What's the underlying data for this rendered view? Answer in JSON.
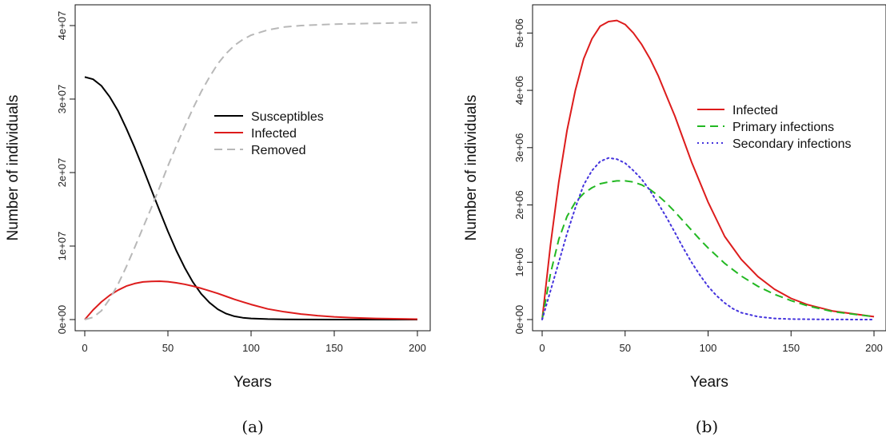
{
  "chart_data": [
    {
      "type": "line",
      "caption": "(a)",
      "xlabel": "Years",
      "ylabel": "Number of individuals",
      "xlim": [
        0,
        200
      ],
      "ylim": [
        0,
        40000000
      ],
      "x_ticks": [
        0,
        50,
        100,
        150,
        200
      ],
      "x_tick_labels": [
        "0",
        "50",
        "100",
        "150",
        "200"
      ],
      "y_ticks": [
        0,
        10000000,
        20000000,
        30000000,
        40000000
      ],
      "y_tick_labels": [
        "0e+00",
        "1e+07",
        "2e+07",
        "3e+07",
        "4e+07"
      ],
      "grid": false,
      "legend_position": "center-right",
      "series": [
        {
          "name": "Susceptibles",
          "color": "#000000",
          "style": "solid",
          "x": [
            0,
            5,
            10,
            15,
            20,
            25,
            30,
            35,
            40,
            45,
            50,
            55,
            60,
            65,
            70,
            75,
            80,
            85,
            90,
            95,
            100,
            110,
            120,
            130,
            150,
            175,
            200
          ],
          "y": [
            33000000,
            32700000,
            31800000,
            30300000,
            28400000,
            26000000,
            23400000,
            20600000,
            17700000,
            14800000,
            12000000,
            9400000,
            7100000,
            5100000,
            3500000,
            2300000,
            1400000,
            800000,
            450000,
            250000,
            150000,
            60000,
            30000,
            15000,
            5000,
            2000,
            1000
          ]
        },
        {
          "name": "Infected",
          "color": "#dd1c1c",
          "style": "solid",
          "x": [
            0,
            5,
            10,
            15,
            20,
            25,
            30,
            35,
            40,
            45,
            50,
            55,
            60,
            65,
            70,
            75,
            80,
            85,
            90,
            95,
            100,
            110,
            120,
            130,
            140,
            150,
            160,
            175,
            200
          ],
          "y": [
            0,
            1300000,
            2400000,
            3300000,
            4000000,
            4550000,
            4900000,
            5120000,
            5200000,
            5220000,
            5150000,
            5000000,
            4800000,
            4550000,
            4250000,
            3900000,
            3550000,
            3150000,
            2750000,
            2400000,
            2050000,
            1450000,
            1050000,
            750000,
            530000,
            370000,
            260000,
            150000,
            50000
          ]
        },
        {
          "name": "Removed",
          "color": "#b8b8b8",
          "style": "dashed",
          "x": [
            0,
            5,
            10,
            15,
            20,
            25,
            30,
            35,
            40,
            45,
            50,
            55,
            60,
            65,
            70,
            75,
            80,
            85,
            90,
            95,
            100,
            110,
            120,
            130,
            140,
            150,
            175,
            200
          ],
          "y": [
            0,
            300000,
            1200000,
            2800000,
            4800000,
            7200000,
            9800000,
            12500000,
            15200000,
            18000000,
            20900000,
            23600000,
            26200000,
            28700000,
            31000000,
            33000000,
            34800000,
            36200000,
            37300000,
            38100000,
            38700000,
            39400000,
            39800000,
            40000000,
            40100000,
            40200000,
            40300000,
            40400000
          ]
        }
      ]
    },
    {
      "type": "line",
      "caption": "(b)",
      "xlabel": "Years",
      "ylabel": "Number of individuals",
      "xlim": [
        0,
        200
      ],
      "ylim": [
        0,
        5200000
      ],
      "x_ticks": [
        0,
        50,
        100,
        150,
        200
      ],
      "x_tick_labels": [
        "0",
        "50",
        "100",
        "150",
        "200"
      ],
      "y_ticks": [
        0,
        1000000,
        2000000,
        3000000,
        4000000,
        5000000
      ],
      "y_tick_labels": [
        "0e+00",
        "1e+06",
        "2e+06",
        "3e+06",
        "4e+06",
        "5e+06"
      ],
      "grid": false,
      "legend_position": "center-right",
      "series": [
        {
          "name": "Infected",
          "color": "#dd1c1c",
          "style": "solid",
          "x": [
            0,
            5,
            10,
            15,
            20,
            25,
            30,
            35,
            40,
            45,
            50,
            55,
            60,
            65,
            70,
            75,
            80,
            85,
            90,
            95,
            100,
            110,
            120,
            130,
            140,
            150,
            160,
            175,
            200
          ],
          "y": [
            0,
            1300000,
            2400000,
            3300000,
            4000000,
            4550000,
            4900000,
            5120000,
            5200000,
            5220000,
            5150000,
            5000000,
            4800000,
            4550000,
            4250000,
            3900000,
            3550000,
            3150000,
            2750000,
            2400000,
            2050000,
            1450000,
            1050000,
            750000,
            530000,
            370000,
            260000,
            150000,
            50000
          ]
        },
        {
          "name": "Primary infections",
          "color": "#22b822",
          "style": "dashed",
          "x": [
            0,
            5,
            10,
            15,
            20,
            25,
            30,
            35,
            40,
            45,
            50,
            55,
            60,
            65,
            70,
            75,
            80,
            85,
            90,
            95,
            100,
            110,
            120,
            130,
            140,
            150,
            160,
            175,
            200
          ],
          "y": [
            0,
            800000,
            1400000,
            1800000,
            2050000,
            2200000,
            2300000,
            2370000,
            2400000,
            2420000,
            2420000,
            2400000,
            2350000,
            2270000,
            2160000,
            2030000,
            1880000,
            1720000,
            1560000,
            1400000,
            1250000,
            980000,
            760000,
            580000,
            440000,
            330000,
            240000,
            140000,
            50000
          ]
        },
        {
          "name": "Secondary infections",
          "color": "#4433dd",
          "style": "dotted",
          "x": [
            0,
            5,
            10,
            15,
            20,
            25,
            30,
            35,
            40,
            45,
            50,
            55,
            60,
            65,
            70,
            75,
            80,
            85,
            90,
            95,
            100,
            105,
            110,
            115,
            120,
            130,
            140,
            150,
            175,
            200
          ],
          "y": [
            0,
            500000,
            1000000,
            1500000,
            1950000,
            2350000,
            2600000,
            2760000,
            2820000,
            2800000,
            2730000,
            2600000,
            2450000,
            2250000,
            2020000,
            1780000,
            1520000,
            1250000,
            1000000,
            780000,
            580000,
            420000,
            290000,
            190000,
            120000,
            50000,
            20000,
            8000,
            2000,
            500
          ]
        }
      ]
    }
  ]
}
